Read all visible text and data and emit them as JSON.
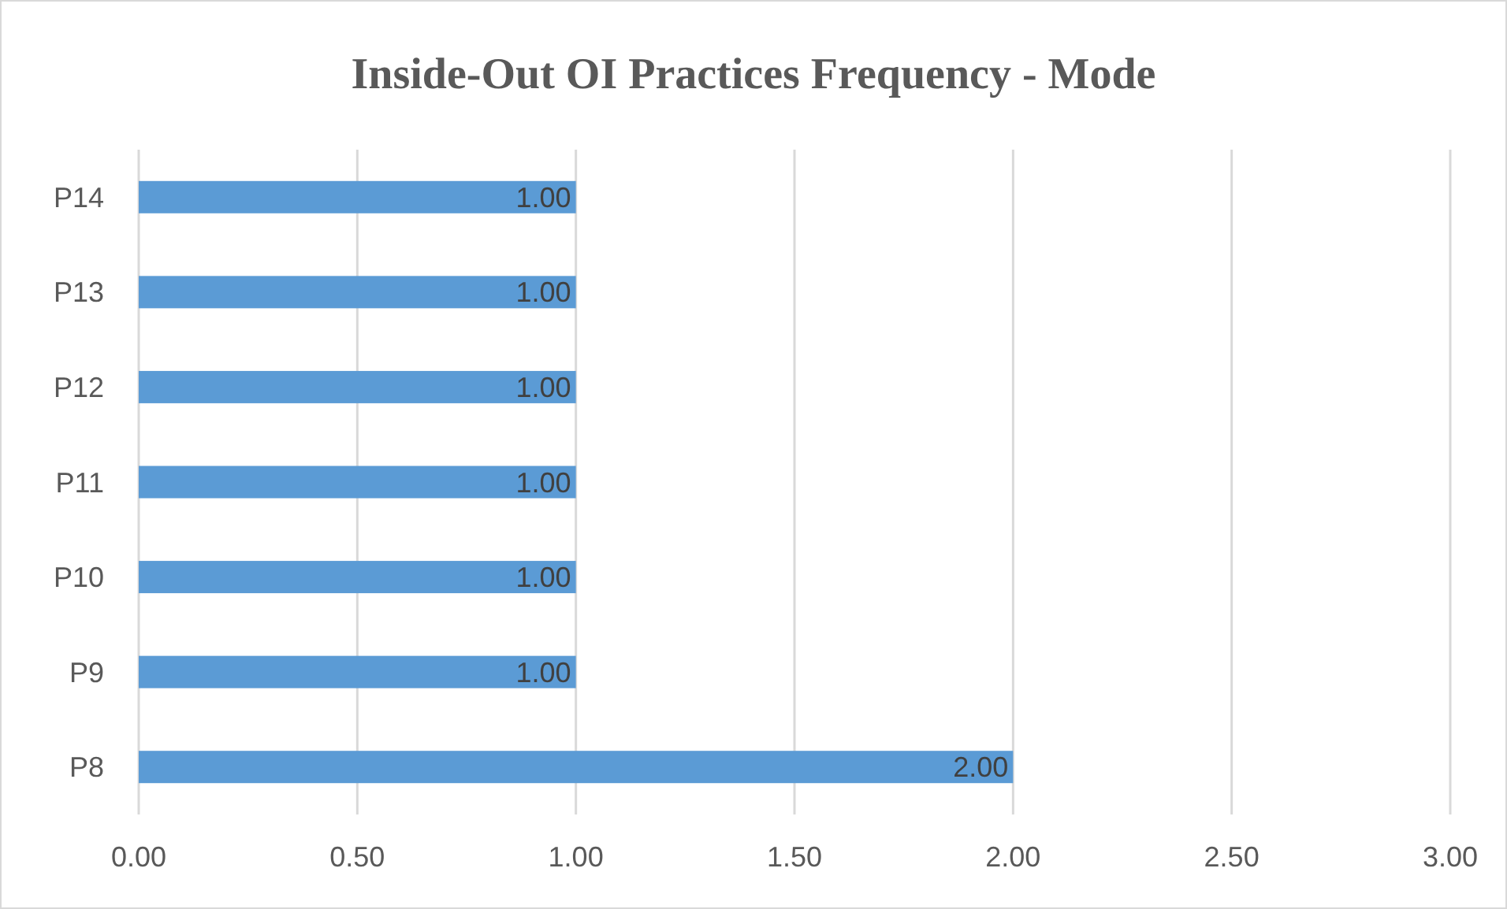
{
  "chart_data": {
    "type": "bar",
    "orientation": "horizontal",
    "title": "Inside-Out OI Practices Frequency - Mode",
    "categories": [
      "P14",
      "P13",
      "P12",
      "P11",
      "P10",
      "P9",
      "P8"
    ],
    "values": [
      1,
      1,
      1,
      1,
      1,
      1,
      2
    ],
    "value_labels": [
      "1.00",
      "1.00",
      "1.00",
      "1.00",
      "1.00",
      "1.00",
      "2.00"
    ],
    "color": "#5b9bd5",
    "xlim": [
      0,
      3
    ],
    "xticks": [
      {
        "value": 0,
        "label": "0.00"
      },
      {
        "value": 0.5,
        "label": "0.50"
      },
      {
        "value": 1,
        "label": "1.00"
      },
      {
        "value": 1.5,
        "label": "1.50"
      },
      {
        "value": 2,
        "label": "2.00"
      },
      {
        "value": 2.5,
        "label": "2.50"
      },
      {
        "value": 3,
        "label": "3.00"
      }
    ],
    "grid": "x"
  }
}
